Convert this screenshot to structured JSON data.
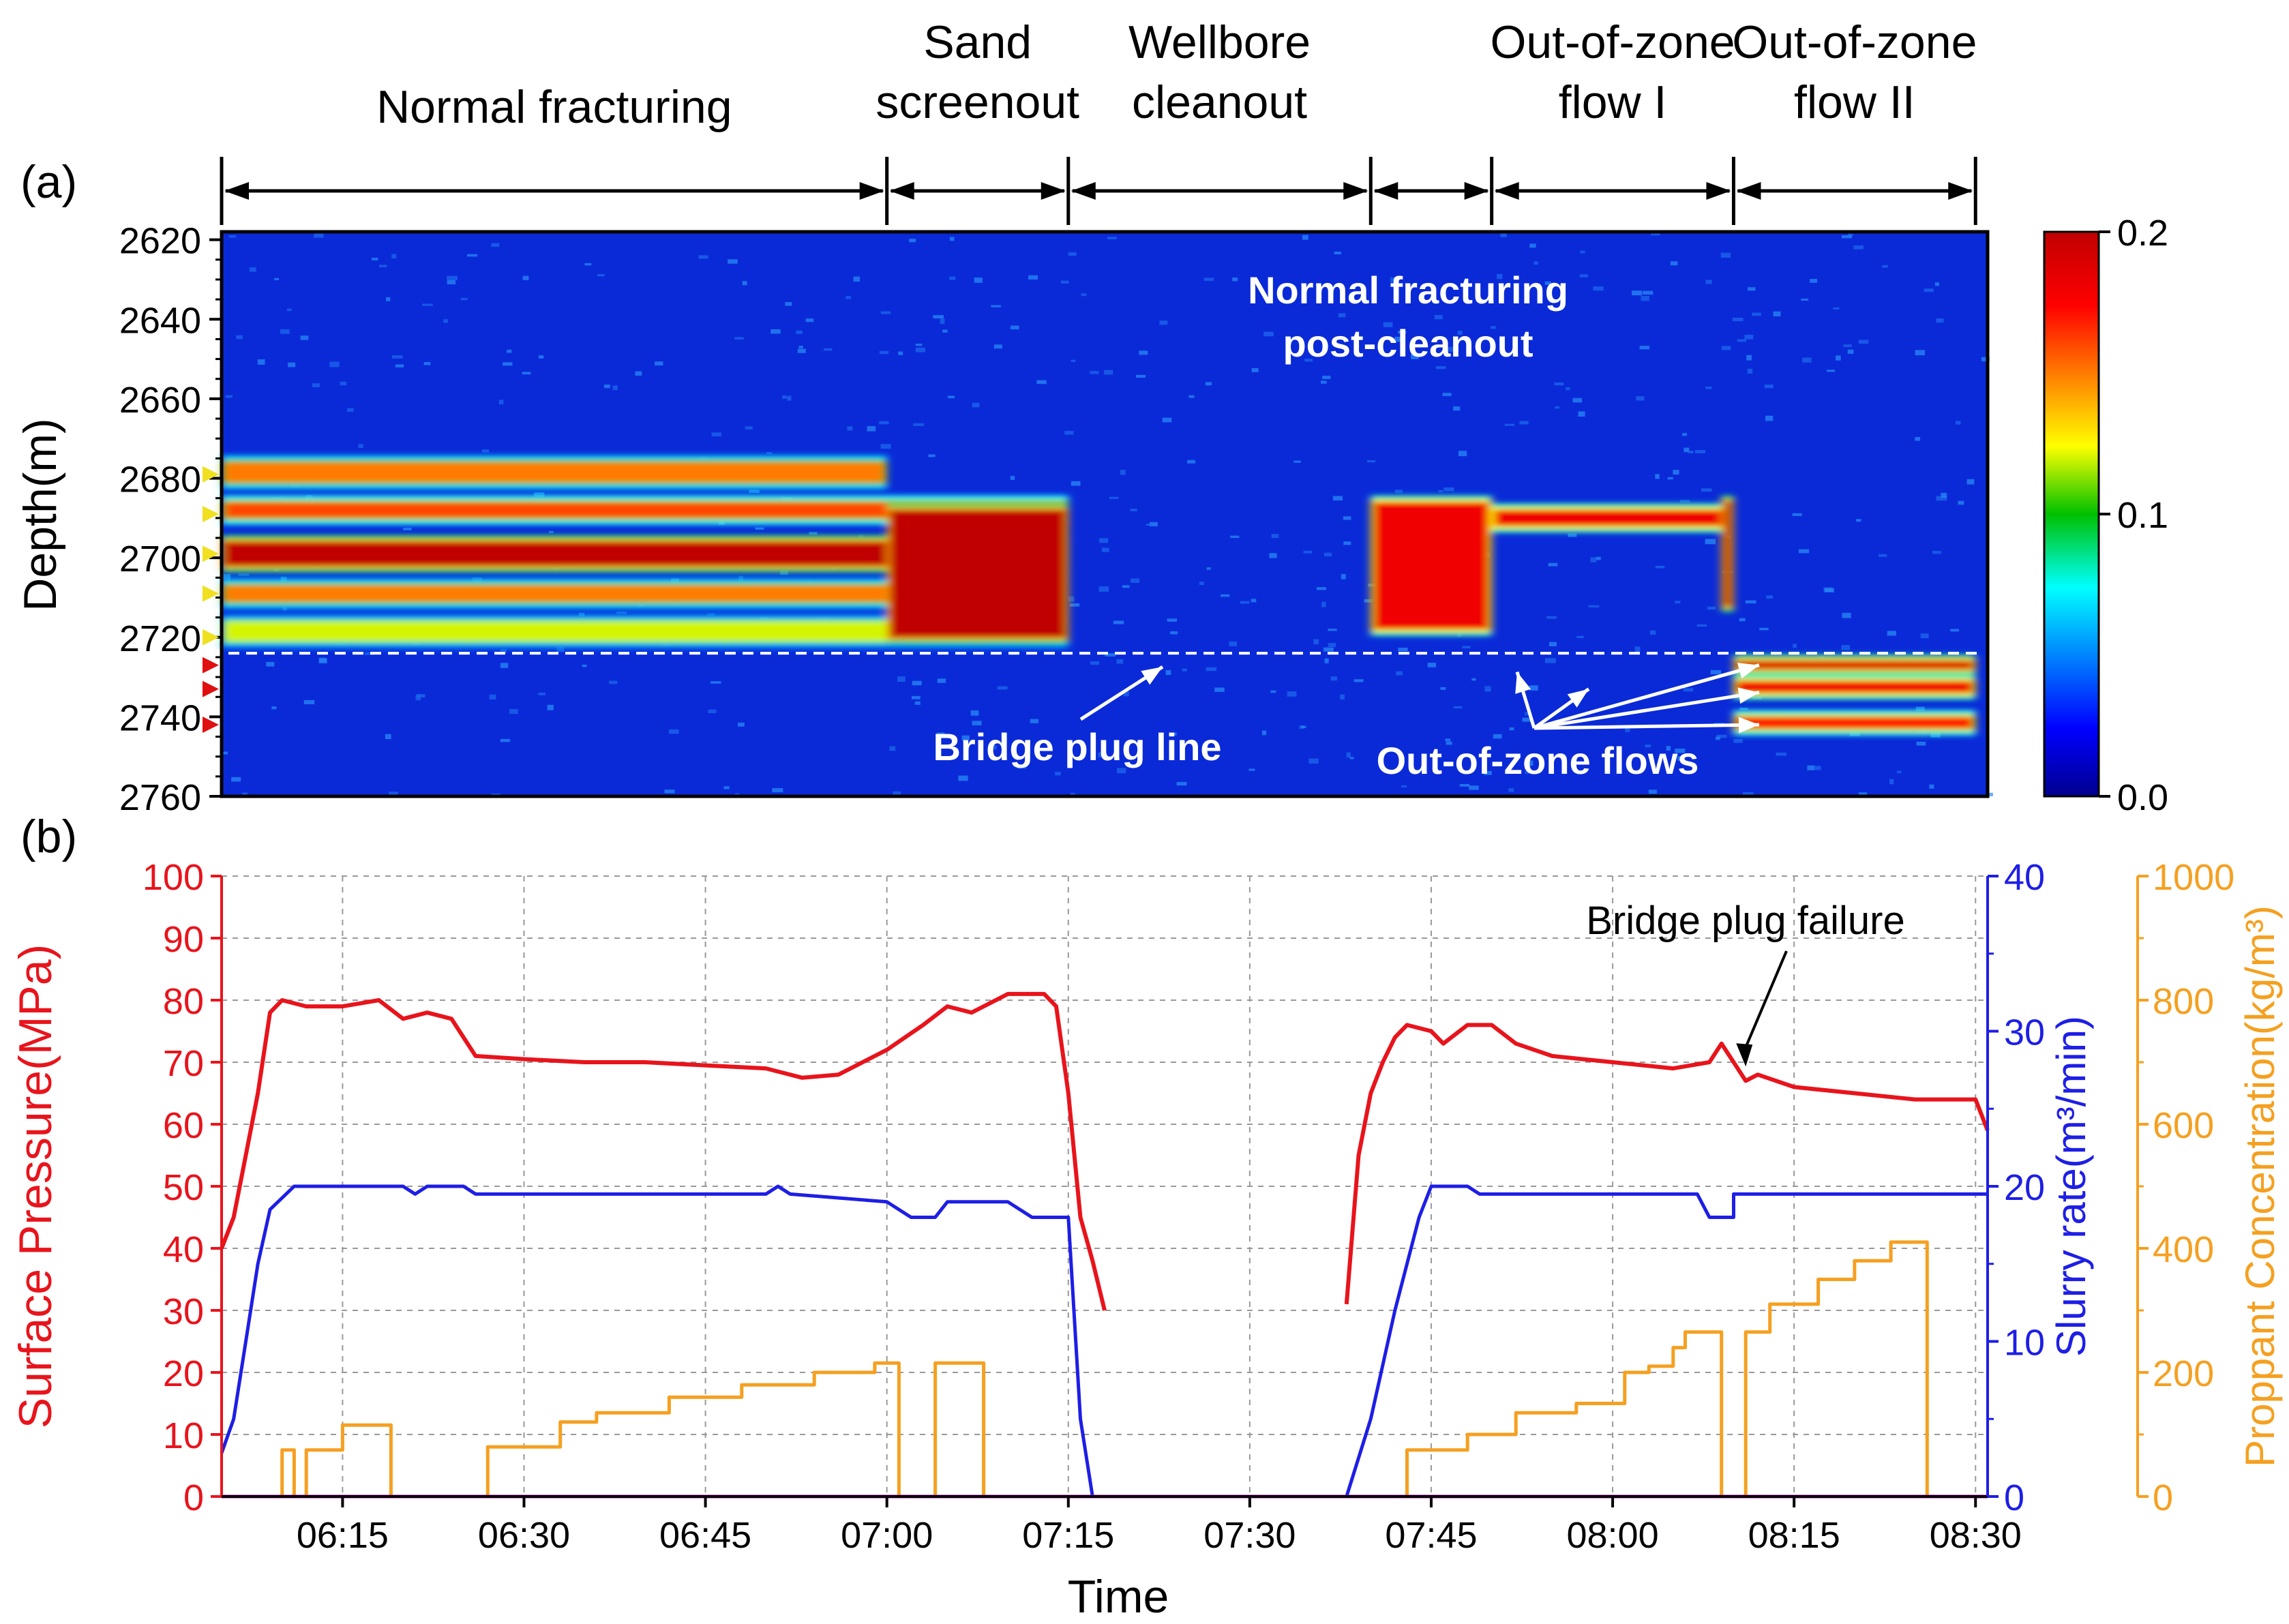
{
  "panel_a_label": "(a)",
  "panel_b_label": "(b)",
  "phases": [
    {
      "label": "Normal fracturing",
      "start": "06:05",
      "end": "07:00"
    },
    {
      "label": "Sand screenout",
      "start": "07:00",
      "end": "07:15"
    },
    {
      "label": "Wellbore cleanout",
      "start": "07:15",
      "end": "07:40"
    },
    {
      "label": "",
      "start": "07:40",
      "end": "07:50"
    },
    {
      "label": "Out-of-zone flow I",
      "start": "07:50",
      "end": "08:10"
    },
    {
      "label": "Out-of-zone flow II",
      "start": "08:10",
      "end": "08:30"
    }
  ],
  "annotations": {
    "post_cleanout": "Normal fracturing post-cleanout",
    "bridge_plug_line": "Bridge plug line",
    "out_of_zone_flows": "Out-of-zone flows",
    "bridge_plug_failure": "Bridge plug failure"
  },
  "colors": {
    "pressure": "#e8141c",
    "slurry": "#1e1ee6",
    "proppant": "#f5a020",
    "baseline": "#cc00cc",
    "perf_marker": "#f0e020",
    "bridge_marker": "#e01010"
  },
  "chart_data": [
    {
      "type": "heatmap",
      "ylabel": "Depth(m)",
      "ylim": [
        2760,
        2618
      ],
      "yticks": [
        2620,
        2640,
        2660,
        2680,
        2700,
        2720,
        2740,
        2760
      ],
      "colorbar": {
        "min": 0.0,
        "max": 0.2,
        "ticks": [
          0.0,
          0.1,
          0.2
        ],
        "colormap": "jet"
      },
      "bridge_plug_depth": 2724,
      "perforation_depths": [
        2679,
        2689,
        2699,
        2709,
        2720
      ],
      "out_of_zone_depths": [
        2727,
        2733,
        2742
      ],
      "bands": [
        {
          "start": "06:05",
          "end": "07:00",
          "depth_top": 2676,
          "depth_bottom": 2681,
          "intensity": 0.15
        },
        {
          "start": "06:05",
          "end": "07:15",
          "depth_top": 2686,
          "depth_bottom": 2690,
          "intensity": 0.16
        },
        {
          "start": "06:05",
          "end": "07:15",
          "depth_top": 2696,
          "depth_bottom": 2702,
          "intensity": 0.2
        },
        {
          "start": "06:05",
          "end": "07:15",
          "depth_top": 2707,
          "depth_bottom": 2711,
          "intensity": 0.15
        },
        {
          "start": "06:05",
          "end": "07:15",
          "depth_top": 2716,
          "depth_bottom": 2721,
          "intensity": 0.12
        },
        {
          "start": "07:00",
          "end": "07:15",
          "depth_top": 2688,
          "depth_bottom": 2720,
          "intensity": 0.2
        },
        {
          "start": "07:40",
          "end": "07:50",
          "depth_top": 2686,
          "depth_bottom": 2718,
          "intensity": 0.18
        },
        {
          "start": "07:50",
          "end": "08:10",
          "depth_top": 2688,
          "depth_bottom": 2692,
          "intensity": 0.18
        },
        {
          "start": "08:09",
          "end": "08:10",
          "depth_top": 2686,
          "depth_bottom": 2712,
          "intensity": 0.2
        },
        {
          "start": "08:10",
          "end": "08:30",
          "depth_top": 2726,
          "depth_bottom": 2728,
          "intensity": 0.19
        },
        {
          "start": "08:10",
          "end": "08:30",
          "depth_top": 2731,
          "depth_bottom": 2734,
          "intensity": 0.18
        },
        {
          "start": "08:10",
          "end": "08:30",
          "depth_top": 2740,
          "depth_bottom": 2743,
          "intensity": 0.17
        }
      ]
    },
    {
      "type": "line",
      "xlabel": "Time",
      "xlim": [
        "06:05",
        "08:31"
      ],
      "xticks": [
        "06:15",
        "06:30",
        "06:45",
        "07:00",
        "07:15",
        "07:30",
        "07:45",
        "08:00",
        "08:15",
        "08:30"
      ],
      "axes": {
        "left": {
          "label": "Surface Pressure(MPa)",
          "ylim": [
            0,
            100
          ],
          "ticks": [
            0,
            10,
            20,
            30,
            40,
            50,
            60,
            70,
            80,
            90,
            100
          ]
        },
        "right1": {
          "label": "Slurry rate(m³/min)",
          "ylim": [
            0,
            40
          ],
          "ticks": [
            0,
            10,
            20,
            30,
            40
          ]
        },
        "right2": {
          "label": "Proppant Concentration(kg/m³)",
          "ylim": [
            0,
            1000
          ],
          "ticks": [
            0,
            200,
            400,
            600,
            800,
            1000
          ]
        }
      },
      "grid": true,
      "series": [
        {
          "axis": "left",
          "segments": [
            [
              [
                "06:05",
                40
              ],
              [
                "06:06",
                45
              ],
              [
                "06:07",
                55
              ],
              [
                "06:08",
                65
              ],
              [
                "06:09",
                78
              ],
              [
                "06:10",
                80
              ],
              [
                "06:12",
                79
              ],
              [
                "06:15",
                79
              ],
              [
                "06:18",
                80
              ],
              [
                "06:20",
                77
              ],
              [
                "06:22",
                78
              ],
              [
                "06:24",
                77
              ],
              [
                "06:26",
                71
              ],
              [
                "06:30",
                70.5
              ],
              [
                "06:35",
                70
              ],
              [
                "06:40",
                70
              ],
              [
                "06:45",
                69.5
              ],
              [
                "06:50",
                69
              ],
              [
                "06:53",
                67.5
              ],
              [
                "06:56",
                68
              ],
              [
                "07:00",
                72
              ],
              [
                "07:03",
                76
              ],
              [
                "07:05",
                79
              ],
              [
                "07:07",
                78
              ],
              [
                "07:10",
                81
              ],
              [
                "07:13",
                81
              ],
              [
                "07:14",
                79
              ],
              [
                "07:15",
                65
              ],
              [
                "07:16",
                45
              ],
              [
                "07:17",
                38
              ],
              [
                "07:18",
                30
              ]
            ],
            [
              [
                "07:38",
                31
              ],
              [
                "07:39",
                55
              ],
              [
                "07:40",
                65
              ],
              [
                "07:41",
                70
              ],
              [
                "07:42",
                74
              ],
              [
                "07:43",
                76
              ],
              [
                "07:45",
                75
              ],
              [
                "07:46",
                73
              ],
              [
                "07:48",
                76
              ],
              [
                "07:50",
                76
              ],
              [
                "07:52",
                73
              ],
              [
                "07:55",
                71
              ],
              [
                "08:00",
                70
              ],
              [
                "08:05",
                69
              ],
              [
                "08:08",
                70
              ],
              [
                "08:09",
                73
              ],
              [
                "08:10",
                70
              ],
              [
                "08:11",
                67
              ],
              [
                "08:12",
                68
              ],
              [
                "08:15",
                66
              ],
              [
                "08:20",
                65
              ],
              [
                "08:25",
                64
              ],
              [
                "08:30",
                64
              ],
              [
                "08:31",
                59
              ]
            ]
          ]
        },
        {
          "axis": "right1",
          "segments": [
            [
              [
                "06:05",
                2.8
              ],
              [
                "06:06",
                5
              ],
              [
                "06:07",
                10
              ],
              [
                "06:08",
                15
              ],
              [
                "06:09",
                18.5
              ],
              [
                "06:11",
                20
              ],
              [
                "06:20",
                20
              ],
              [
                "06:21",
                19.5
              ],
              [
                "06:22",
                20
              ],
              [
                "06:25",
                20
              ],
              [
                "06:26",
                19.5
              ],
              [
                "06:50",
                19.5
              ],
              [
                "06:51",
                20
              ],
              [
                "06:52",
                19.5
              ],
              [
                "07:00",
                19
              ],
              [
                "07:02",
                18
              ],
              [
                "07:04",
                18
              ],
              [
                "07:05",
                19
              ],
              [
                "07:10",
                19
              ],
              [
                "07:12",
                18
              ],
              [
                "07:14",
                18
              ],
              [
                "07:15",
                18
              ],
              [
                "07:16",
                5
              ],
              [
                "07:17",
                0
              ]
            ],
            [
              [
                "07:38",
                0
              ],
              [
                "07:40",
                5
              ],
              [
                "07:42",
                12
              ],
              [
                "07:44",
                18
              ],
              [
                "07:45",
                20
              ],
              [
                "07:48",
                20
              ],
              [
                "07:49",
                19.5
              ],
              [
                "08:07",
                19.5
              ],
              [
                "08:08",
                18
              ],
              [
                "08:10",
                18
              ],
              [
                "08:10",
                19.5
              ],
              [
                "08:31",
                19.5
              ]
            ]
          ]
        },
        {
          "axis": "right2",
          "segments": [
            [
              [
                "06:05",
                0
              ],
              [
                "06:10",
                0
              ],
              [
                "06:10",
                75
              ],
              [
                "06:11",
                75
              ],
              [
                "06:11",
                0
              ],
              [
                "06:12",
                0
              ],
              [
                "06:12",
                75
              ],
              [
                "06:15",
                75
              ],
              [
                "06:15",
                115
              ],
              [
                "06:19",
                115
              ],
              [
                "06:19",
                0
              ],
              [
                "06:27",
                0
              ],
              [
                "06:27",
                80
              ],
              [
                "06:33",
                80
              ],
              [
                "06:33",
                120
              ],
              [
                "06:36",
                120
              ],
              [
                "06:36",
                135
              ],
              [
                "06:42",
                135
              ],
              [
                "06:42",
                160
              ],
              [
                "06:48",
                160
              ],
              [
                "06:48",
                180
              ],
              [
                "06:54",
                180
              ],
              [
                "06:54",
                200
              ],
              [
                "06:59",
                200
              ],
              [
                "06:59",
                215
              ],
              [
                "07:01",
                215
              ],
              [
                "07:01",
                0
              ],
              [
                "07:04",
                0
              ],
              [
                "07:04",
                215
              ],
              [
                "07:08",
                215
              ],
              [
                "07:08",
                0
              ],
              [
                "07:18",
                0
              ]
            ],
            [
              [
                "07:38",
                0
              ],
              [
                "07:43",
                0
              ],
              [
                "07:43",
                75
              ],
              [
                "07:48",
                75
              ],
              [
                "07:48",
                100
              ],
              [
                "07:52",
                100
              ],
              [
                "07:52",
                135
              ],
              [
                "07:57",
                135
              ],
              [
                "07:57",
                150
              ],
              [
                "08:01",
                150
              ],
              [
                "08:01",
                200
              ],
              [
                "08:03",
                200
              ],
              [
                "08:03",
                210
              ],
              [
                "08:05",
                210
              ],
              [
                "08:05",
                240
              ],
              [
                "08:06",
                240
              ],
              [
                "08:06",
                265
              ],
              [
                "08:09",
                265
              ],
              [
                "08:09",
                0
              ],
              [
                "08:11",
                0
              ],
              [
                "08:11",
                265
              ],
              [
                "08:13",
                265
              ],
              [
                "08:13",
                310
              ],
              [
                "08:17",
                310
              ],
              [
                "08:17",
                350
              ],
              [
                "08:20",
                350
              ],
              [
                "08:20",
                380
              ],
              [
                "08:23",
                380
              ],
              [
                "08:23",
                410
              ],
              [
                "08:26",
                410
              ],
              [
                "08:26",
                0
              ],
              [
                "08:31",
                0
              ]
            ]
          ]
        },
        {
          "axis": "right2",
          "segments": [
            [
              [
                "06:05",
                0
              ],
              [
                "08:31",
                0
              ]
            ]
          ]
        }
      ]
    }
  ]
}
